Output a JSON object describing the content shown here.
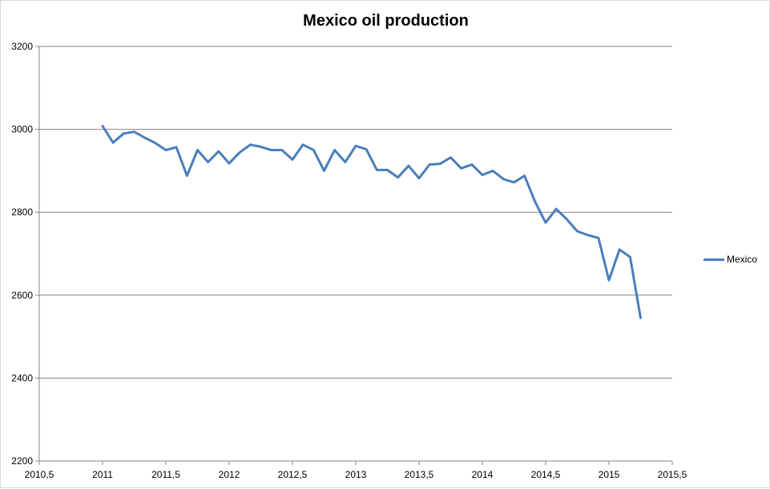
{
  "chart_data": {
    "type": "line",
    "title": "Mexico oil production",
    "xlabel": "",
    "ylabel": "",
    "xlim": [
      2010.5,
      2015.5
    ],
    "ylim": [
      2200,
      3200
    ],
    "x_ticks": [
      2010.5,
      2011,
      2011.5,
      2012,
      2012.5,
      2013,
      2013.5,
      2014,
      2014.5,
      2015,
      2015.5
    ],
    "x_tick_labels": [
      "2010,5",
      "2011",
      "2011,5",
      "2012",
      "2012,5",
      "2013",
      "2013,5",
      "2014",
      "2014,5",
      "2015",
      "2015,5"
    ],
    "y_ticks": [
      2200,
      2400,
      2600,
      2800,
      3000,
      3200
    ],
    "y_tick_labels": [
      "2200",
      "2400",
      "2600",
      "2800",
      "3000",
      "3200"
    ],
    "grid": "horizontal",
    "legend_position": "right",
    "series": [
      {
        "name": "Mexico",
        "color": "#4a7ebb",
        "x": [
          2011.0,
          2011.083,
          2011.167,
          2011.25,
          2011.333,
          2011.417,
          2011.5,
          2011.583,
          2011.667,
          2011.75,
          2011.833,
          2011.917,
          2012.0,
          2012.083,
          2012.167,
          2012.25,
          2012.333,
          2012.417,
          2012.5,
          2012.583,
          2012.667,
          2012.75,
          2012.833,
          2012.917,
          2013.0,
          2013.083,
          2013.167,
          2013.25,
          2013.333,
          2013.417,
          2013.5,
          2013.583,
          2013.667,
          2013.75,
          2013.833,
          2013.917,
          2014.0,
          2014.083,
          2014.167,
          2014.25,
          2014.333,
          2014.417,
          2014.5,
          2014.583,
          2014.667,
          2014.75,
          2014.833,
          2014.917,
          2015.0,
          2015.083,
          2015.167,
          2015.25
        ],
        "values": [
          3008,
          2968,
          2990,
          2994,
          2980,
          2967,
          2950,
          2957,
          2888,
          2950,
          2921,
          2947,
          2918,
          2944,
          2963,
          2958,
          2950,
          2950,
          2927,
          2963,
          2950,
          2900,
          2950,
          2921,
          2960,
          2952,
          2902,
          2902,
          2884,
          2912,
          2882,
          2915,
          2917,
          2932,
          2906,
          2915,
          2890,
          2900,
          2880,
          2872,
          2888,
          2825,
          2775,
          2808,
          2783,
          2754,
          2745,
          2738,
          2636,
          2710,
          2692,
          2545
        ]
      }
    ]
  }
}
